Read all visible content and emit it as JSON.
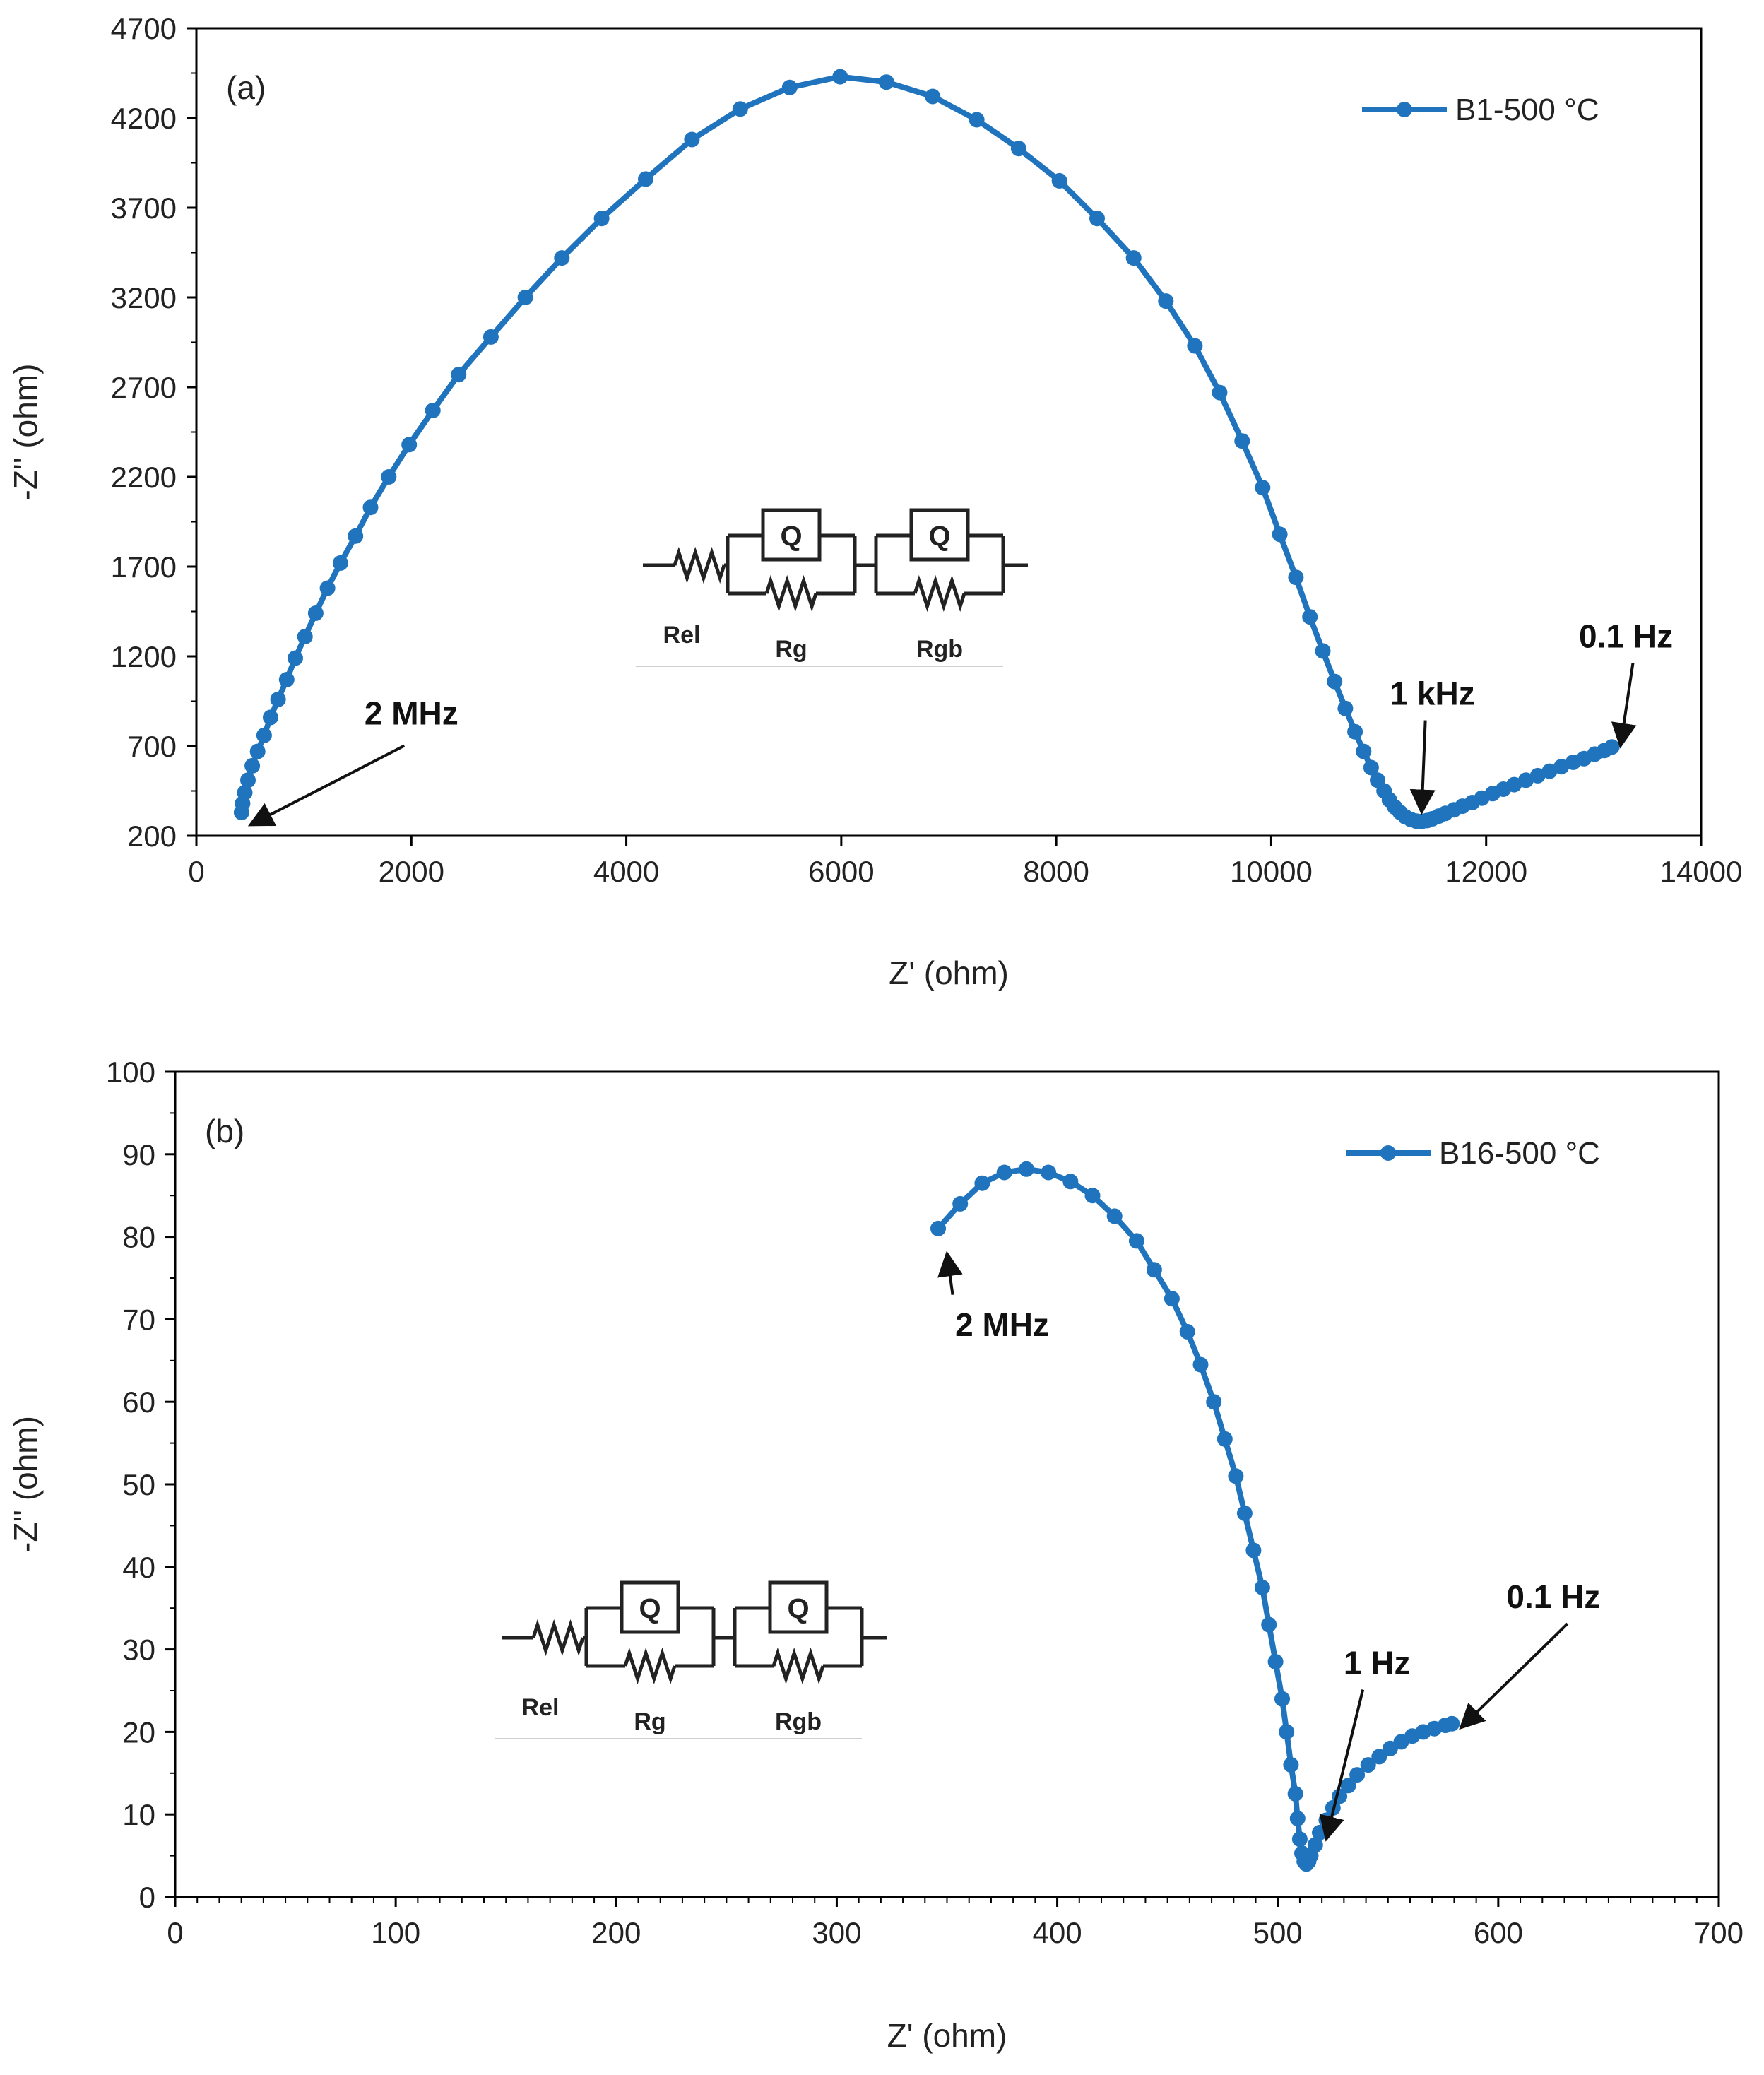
{
  "colors": {
    "series": "#1f74bd",
    "axis": "#000000",
    "text": "#222222"
  },
  "chart_data": [
    {
      "type": "scatter",
      "panel_label": "(a)",
      "xlabel": "Z' (ohm)",
      "ylabel": "-Z'' (ohm)",
      "xlim": [
        0,
        14000
      ],
      "ylim": [
        200,
        4700
      ],
      "xticks": [
        0,
        2000,
        4000,
        6000,
        8000,
        10000,
        12000,
        14000
      ],
      "yticks": [
        200,
        700,
        1200,
        1700,
        2200,
        2700,
        3200,
        3700,
        4200,
        4700
      ],
      "legend": {
        "label": "B1-500 °C",
        "position": "top-right"
      },
      "series": [
        {
          "name": "B1-500 °C",
          "x": [
            420,
            430,
            450,
            480,
            520,
            570,
            630,
            690,
            760,
            840,
            920,
            1010,
            1110,
            1220,
            1340,
            1480,
            1620,
            1790,
            1980,
            2200,
            2440,
            2740,
            3060,
            3400,
            3770,
            4180,
            4610,
            5060,
            5520,
            5990,
            6420,
            6850,
            7260,
            7650,
            8030,
            8380,
            8720,
            9020,
            9290,
            9520,
            9730,
            9920,
            10080,
            10230,
            10360,
            10480,
            10590,
            10690,
            10780,
            10860,
            10930,
            10990,
            11050,
            11100,
            11150,
            11200,
            11250,
            11300,
            11350,
            11400,
            11450,
            11500,
            11560,
            11620,
            11700,
            11780,
            11870,
            11960,
            12060,
            12160,
            12260,
            12370,
            12480,
            12590,
            12700,
            12810,
            12910,
            13010,
            13100,
            13170
          ],
          "y": [
            330,
            380,
            440,
            510,
            590,
            670,
            760,
            860,
            960,
            1070,
            1190,
            1310,
            1440,
            1580,
            1720,
            1870,
            2030,
            2200,
            2380,
            2570,
            2770,
            2980,
            3200,
            3420,
            3640,
            3860,
            4080,
            4250,
            4370,
            4430,
            4400,
            4320,
            4190,
            4030,
            3850,
            3640,
            3420,
            3180,
            2930,
            2670,
            2400,
            2140,
            1880,
            1640,
            1420,
            1230,
            1060,
            910,
            780,
            670,
            580,
            510,
            450,
            400,
            360,
            330,
            305,
            290,
            282,
            280,
            285,
            295,
            310,
            325,
            345,
            365,
            385,
            410,
            435,
            460,
            485,
            510,
            535,
            560,
            585,
            610,
            630,
            655,
            675,
            695
          ]
        }
      ],
      "annotations": [
        {
          "text": "2 MHz",
          "at": [
            500,
            260
          ],
          "text_at": [
            2000,
            820
          ]
        },
        {
          "text": "1 kHz",
          "at": [
            11400,
            330
          ],
          "text_at": [
            11500,
            930
          ]
        },
        {
          "text": "0.1 Hz",
          "at": [
            13250,
            700
          ],
          "text_at": [
            13300,
            1250
          ]
        }
      ],
      "circuit": {
        "labels": [
          "Rel",
          "Rg",
          "Rgb"
        ],
        "element": "Q"
      }
    },
    {
      "type": "scatter",
      "panel_label": "(b)",
      "xlabel": "Z' (ohm)",
      "ylabel": "-Z'' (ohm)",
      "xlim": [
        0,
        700
      ],
      "ylim": [
        0,
        100
      ],
      "xticks": [
        0,
        100,
        200,
        300,
        400,
        500,
        600,
        700
      ],
      "yticks": [
        0,
        10,
        20,
        30,
        40,
        50,
        60,
        70,
        80,
        90,
        100
      ],
      "legend": {
        "label": "B16-500 °C",
        "position": "top-right"
      },
      "series": [
        {
          "name": "B16-500 °C",
          "x": [
            346,
            356,
            366,
            376,
            386,
            396,
            406,
            416,
            426,
            436,
            444,
            452,
            459,
            465,
            471,
            476,
            481,
            485,
            489,
            493,
            496,
            499,
            502,
            504,
            506,
            508,
            509,
            510,
            511,
            512,
            513,
            514,
            515,
            517,
            519,
            522,
            525,
            528,
            532,
            536,
            541,
            546,
            551,
            556,
            561,
            566,
            571,
            576,
            579
          ],
          "y": [
            81,
            84,
            86.5,
            87.8,
            88.2,
            87.8,
            86.7,
            85,
            82.5,
            79.5,
            76,
            72.5,
            68.5,
            64.5,
            60,
            55.5,
            51,
            46.5,
            42,
            37.5,
            33,
            28.5,
            24,
            20,
            16,
            12.5,
            9.5,
            7,
            5.3,
            4.3,
            4,
            4.3,
            5,
            6.3,
            7.8,
            9.3,
            10.8,
            12.2,
            13.5,
            14.8,
            16,
            17,
            18,
            18.8,
            19.5,
            20,
            20.4,
            20.8,
            21
          ]
        }
      ],
      "annotations": [
        {
          "text": "2 MHz",
          "at": [
            350,
            78
          ],
          "text_at": [
            375,
            68
          ]
        },
        {
          "text": "1 Hz",
          "at": [
            522,
            7
          ],
          "text_at": [
            545,
            27
          ]
        },
        {
          "text": "0.1 Hz",
          "at": [
            583,
            20.5
          ],
          "text_at": [
            625,
            35
          ]
        }
      ],
      "circuit": {
        "labels": [
          "Rel",
          "Rg",
          "Rgb"
        ],
        "element": "Q"
      }
    }
  ]
}
